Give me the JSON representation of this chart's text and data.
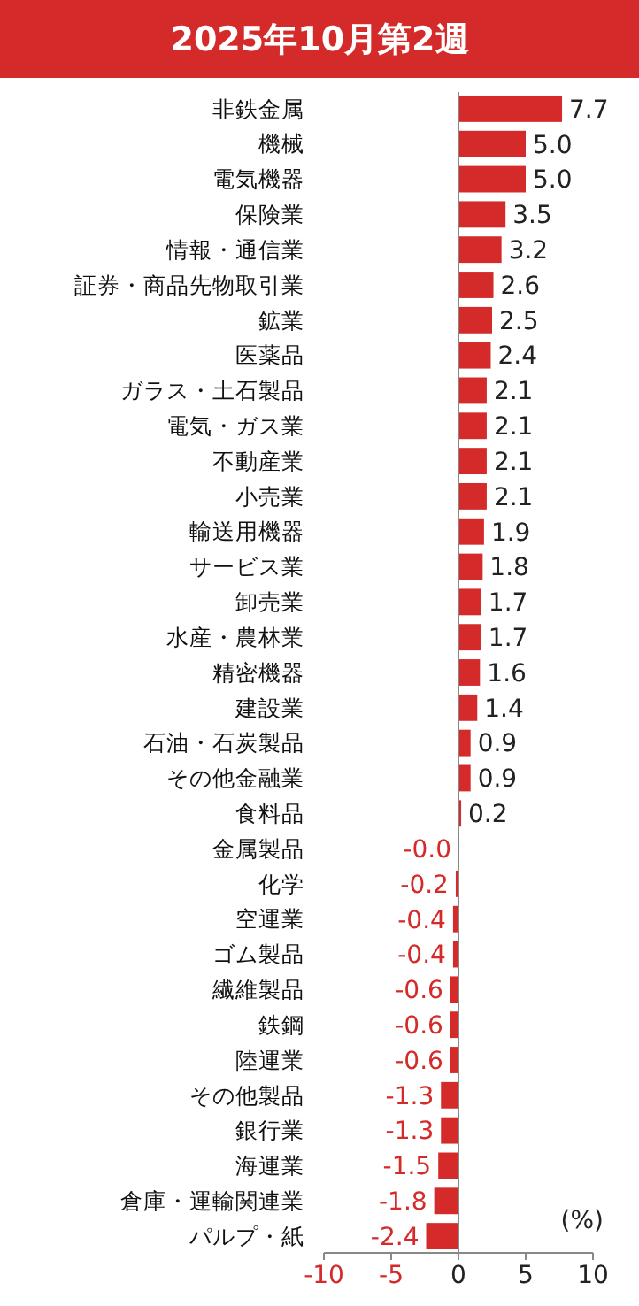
{
  "chart_data": {
    "type": "bar",
    "orientation": "horizontal",
    "title": "2025年10月第2週",
    "xlabel": "(%)",
    "color": "#d42a2a",
    "categories": [
      "非鉄金属",
      "機械",
      "電気機器",
      "保険業",
      "情報・通信業",
      "証券・商品先物取引業",
      "鉱業",
      "医薬品",
      "ガラス・土石製品",
      "電気・ガス業",
      "不動産業",
      "小売業",
      "輸送用機器",
      "サービス業",
      "卸売業",
      "水産・農林業",
      "精密機器",
      "建設業",
      "石油・石炭製品",
      "その他金融業",
      "食料品",
      "金属製品",
      "化学",
      "空運業",
      "ゴム製品",
      "繊維製品",
      "鉄鋼",
      "陸運業",
      "その他製品",
      "銀行業",
      "海運業",
      "倉庫・運輸関連業",
      "パルプ・紙"
    ],
    "values": [
      7.7,
      5.0,
      5.0,
      3.5,
      3.2,
      2.6,
      2.5,
      2.4,
      2.1,
      2.1,
      2.1,
      2.1,
      1.9,
      1.8,
      1.7,
      1.7,
      1.6,
      1.4,
      0.9,
      0.9,
      0.2,
      -0.0,
      -0.2,
      -0.4,
      -0.4,
      -0.6,
      -0.6,
      -0.6,
      -1.3,
      -1.3,
      -1.5,
      -1.8,
      -2.4
    ],
    "value_labels": [
      "7.7",
      "5.0",
      "5.0",
      "3.5",
      "3.2",
      "2.6",
      "2.5",
      "2.4",
      "2.1",
      "2.1",
      "2.1",
      "2.1",
      "1.9",
      "1.8",
      "1.7",
      "1.7",
      "1.6",
      "1.4",
      "0.9",
      "0.9",
      "0.2",
      "-0.0",
      "-0.2",
      "-0.4",
      "-0.4",
      "-0.6",
      "-0.6",
      "-0.6",
      "-1.3",
      "-1.3",
      "-1.5",
      "-1.8",
      "-2.4"
    ],
    "xlim": [
      -10,
      10
    ],
    "xticks": [
      -10,
      -5,
      0,
      5,
      10
    ]
  }
}
